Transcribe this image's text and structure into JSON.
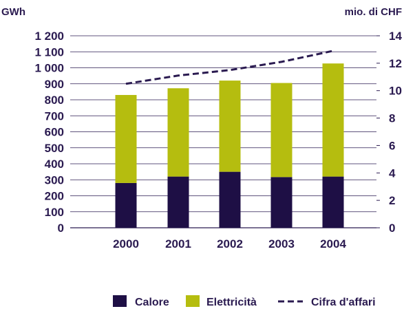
{
  "chart_data": {
    "type": "bar",
    "stacked": true,
    "categories": [
      "2000",
      "2001",
      "2002",
      "2003",
      "2004"
    ],
    "series": [
      {
        "name": "Calore",
        "values": [
          280,
          320,
          350,
          317,
          320
        ]
      },
      {
        "name": "Elettricità",
        "values": [
          550,
          552,
          570,
          588,
          707
        ]
      }
    ],
    "line_series": [
      {
        "name": "Cifra d'affari",
        "axis": "right",
        "values": [
          10.5,
          11.1,
          11.5,
          12.1,
          12.9
        ]
      }
    ],
    "left_axis": {
      "unit": "GWh",
      "range": [
        0,
        1200
      ],
      "ticks": [
        0,
        100,
        200,
        300,
        400,
        500,
        600,
        700,
        800,
        900,
        1000,
        1100,
        1200
      ],
      "tick_labels": [
        "0",
        "100",
        "200",
        "300",
        "400",
        "500",
        "600",
        "700",
        "800",
        "900",
        "1 000",
        "1 100",
        "1 200"
      ]
    },
    "right_axis": {
      "unit": "mio. di CHF",
      "range": [
        0,
        14
      ],
      "ticks": [
        0,
        2,
        4,
        6,
        8,
        10,
        12,
        14
      ],
      "tick_labels": [
        "0",
        "2",
        "4",
        "6",
        "8",
        "10",
        "12",
        "14"
      ]
    },
    "grid": true,
    "legend_position": "bottom",
    "colors": {
      "Calore": "#1e0f45",
      "Elettricità": "#b5bd0f",
      "Cifra d'affari": "#2a1a50",
      "grid": "#2a1a50",
      "text": "#2a1a50"
    }
  }
}
